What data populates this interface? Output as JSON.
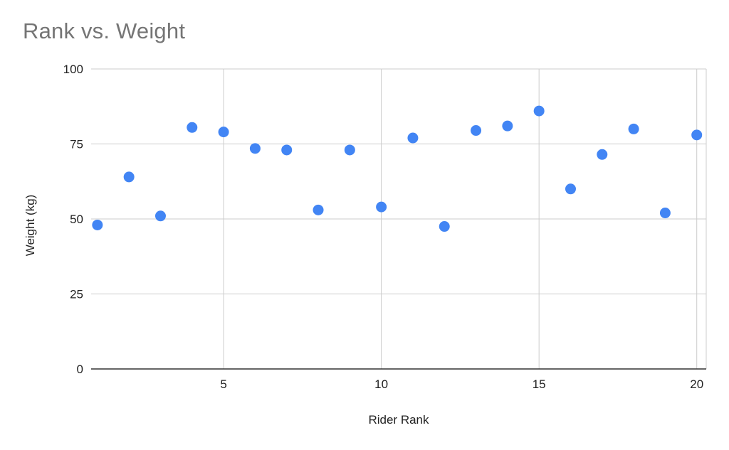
{
  "chart_data": {
    "type": "scatter",
    "title": "Rank vs. Weight",
    "xlabel": "Rider Rank",
    "ylabel": "Weight (kg)",
    "xlim": [
      0.8,
      20.3
    ],
    "ylim": [
      0,
      100
    ],
    "x_ticks": [
      5,
      10,
      15,
      20
    ],
    "y_ticks": [
      0,
      25,
      50,
      75,
      100
    ],
    "grid": true,
    "point_color": "#4285f4",
    "series": [
      {
        "x": [
          1,
          2,
          3,
          4,
          5,
          6,
          7,
          8,
          9,
          10,
          11,
          12,
          13,
          14,
          15,
          16,
          17,
          18,
          19,
          20
        ],
        "y": [
          48,
          64,
          51,
          80.5,
          79,
          73.5,
          73,
          53,
          73,
          54,
          77,
          47.5,
          79.5,
          81,
          86,
          60,
          71.5,
          80,
          52,
          78
        ]
      }
    ]
  }
}
